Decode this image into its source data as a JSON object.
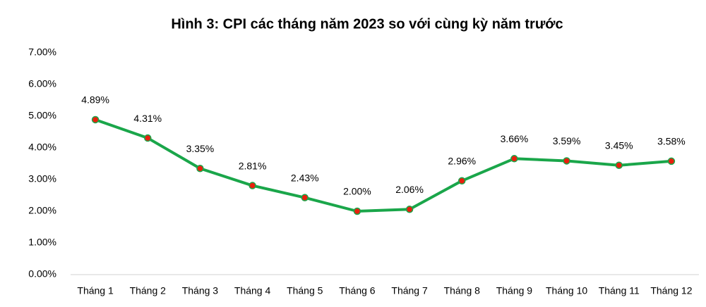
{
  "chart_data": {
    "type": "line",
    "title": "Hình 3: CPI các tháng năm 2023 so với cùng kỳ năm trước",
    "categories": [
      "Tháng 1",
      "Tháng 2",
      "Tháng 3",
      "Tháng 4",
      "Tháng 5",
      "Tháng 6",
      "Tháng 7",
      "Tháng 8",
      "Tháng 9",
      "Tháng 10",
      "Tháng 11",
      "Tháng 12"
    ],
    "series": [
      {
        "name": "CPI",
        "color": "#1aa64a",
        "marker_color": "#e8200e",
        "values": [
          4.89,
          4.31,
          3.35,
          2.81,
          2.43,
          2.0,
          2.06,
          2.96,
          3.66,
          3.59,
          3.45,
          3.58
        ],
        "value_labels": [
          "4.89%",
          "4.31%",
          "3.35%",
          "2.81%",
          "2.43%",
          "2.00%",
          "2.06%",
          "2.96%",
          "3.66%",
          "3.59%",
          "3.45%",
          "3.58%"
        ]
      }
    ],
    "ylim": [
      0,
      7
    ],
    "yticks": [
      {
        "value": 0,
        "label": "0.00%"
      },
      {
        "value": 1,
        "label": "1.00%"
      },
      {
        "value": 2,
        "label": "2.00%"
      },
      {
        "value": 3,
        "label": "3.00%"
      },
      {
        "value": 4,
        "label": "4.00%"
      },
      {
        "value": 5,
        "label": "5.00%"
      },
      {
        "value": 6,
        "label": "6.00%"
      },
      {
        "value": 7,
        "label": "7.00%"
      }
    ],
    "grid": false
  }
}
